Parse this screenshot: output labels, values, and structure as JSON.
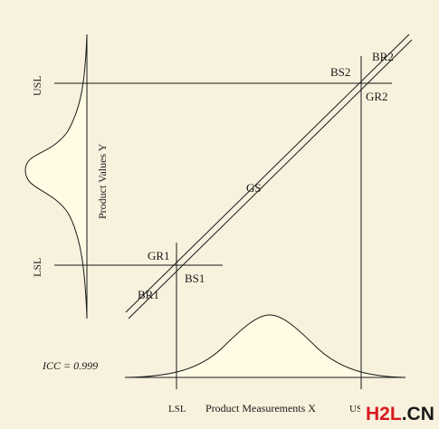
{
  "labels": {
    "usl_y": "USL",
    "lsl_y": "LSL",
    "usl_x": "USL",
    "lsl_x": "LSL",
    "y_axis": "Product Values Y",
    "x_axis": "Product Measurements X",
    "gs": "GS",
    "gr1": "GR1",
    "bs1": "BS1",
    "br1": "BR1",
    "bs2": "BS2",
    "br2": "BR2",
    "gr2": "GR2",
    "icc": "ICC = 0.999"
  },
  "watermark": {
    "prefix": "H2L",
    "suffix": ".CN"
  },
  "colors": {
    "background": "#f7f1dd",
    "curve_fill": "#fffbe4",
    "line": "#1a1a1a",
    "watermark_red": "#d71920"
  }
}
